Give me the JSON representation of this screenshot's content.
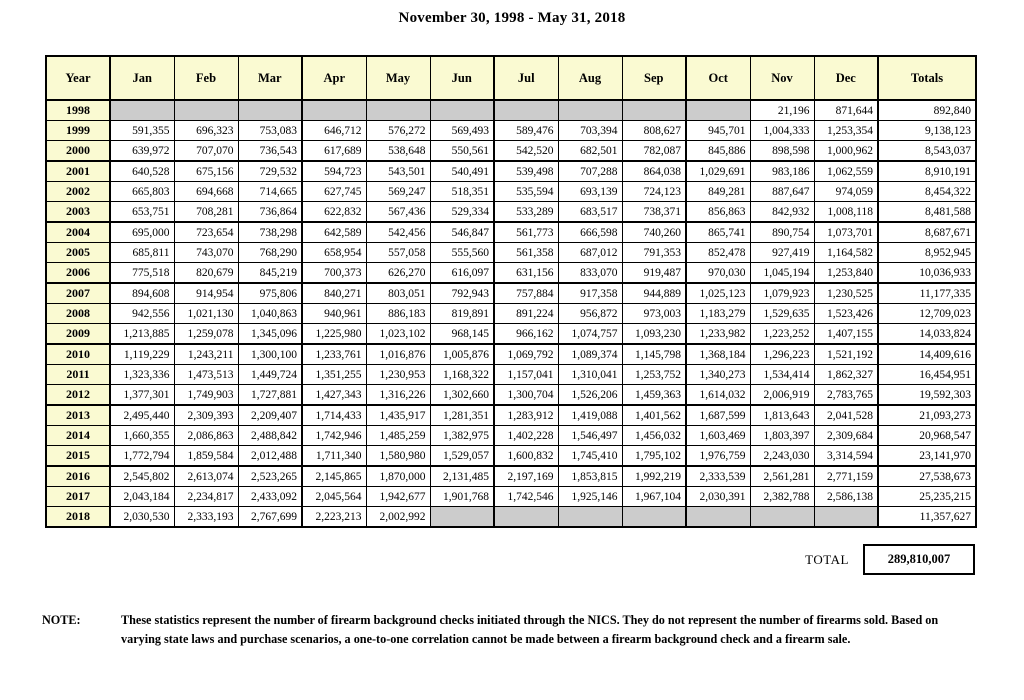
{
  "title": "November 30, 1998 - May 31, 2018",
  "colors": {
    "header_bg": "#fafad2",
    "empty_bg": "#cccccc",
    "border": "#000000"
  },
  "table": {
    "type": "table",
    "columns": [
      "Year",
      "Jan",
      "Feb",
      "Mar",
      "Apr",
      "May",
      "Jun",
      "Jul",
      "Aug",
      "Sep",
      "Oct",
      "Nov",
      "Dec",
      "Totals"
    ],
    "rows": [
      {
        "year": "1998",
        "months": [
          "",
          "",
          "",
          "",
          "",
          "",
          "",
          "",
          "",
          "",
          "21,196",
          "871,644"
        ],
        "total": "892,840"
      },
      {
        "year": "1999",
        "months": [
          "591,355",
          "696,323",
          "753,083",
          "646,712",
          "576,272",
          "569,493",
          "589,476",
          "703,394",
          "808,627",
          "945,701",
          "1,004,333",
          "1,253,354"
        ],
        "total": "9,138,123"
      },
      {
        "year": "2000",
        "months": [
          "639,972",
          "707,070",
          "736,543",
          "617,689",
          "538,648",
          "550,561",
          "542,520",
          "682,501",
          "782,087",
          "845,886",
          "898,598",
          "1,000,962"
        ],
        "total": "8,543,037"
      },
      {
        "year": "2001",
        "months": [
          "640,528",
          "675,156",
          "729,532",
          "594,723",
          "543,501",
          "540,491",
          "539,498",
          "707,288",
          "864,038",
          "1,029,691",
          "983,186",
          "1,062,559"
        ],
        "total": "8,910,191"
      },
      {
        "year": "2002",
        "months": [
          "665,803",
          "694,668",
          "714,665",
          "627,745",
          "569,247",
          "518,351",
          "535,594",
          "693,139",
          "724,123",
          "849,281",
          "887,647",
          "974,059"
        ],
        "total": "8,454,322"
      },
      {
        "year": "2003",
        "months": [
          "653,751",
          "708,281",
          "736,864",
          "622,832",
          "567,436",
          "529,334",
          "533,289",
          "683,517",
          "738,371",
          "856,863",
          "842,932",
          "1,008,118"
        ],
        "total": "8,481,588"
      },
      {
        "year": "2004",
        "months": [
          "695,000",
          "723,654",
          "738,298",
          "642,589",
          "542,456",
          "546,847",
          "561,773",
          "666,598",
          "740,260",
          "865,741",
          "890,754",
          "1,073,701"
        ],
        "total": "8,687,671"
      },
      {
        "year": "2005",
        "months": [
          "685,811",
          "743,070",
          "768,290",
          "658,954",
          "557,058",
          "555,560",
          "561,358",
          "687,012",
          "791,353",
          "852,478",
          "927,419",
          "1,164,582"
        ],
        "total": "8,952,945"
      },
      {
        "year": "2006",
        "months": [
          "775,518",
          "820,679",
          "845,219",
          "700,373",
          "626,270",
          "616,097",
          "631,156",
          "833,070",
          "919,487",
          "970,030",
          "1,045,194",
          "1,253,840"
        ],
        "total": "10,036,933"
      },
      {
        "year": "2007",
        "months": [
          "894,608",
          "914,954",
          "975,806",
          "840,271",
          "803,051",
          "792,943",
          "757,884",
          "917,358",
          "944,889",
          "1,025,123",
          "1,079,923",
          "1,230,525"
        ],
        "total": "11,177,335"
      },
      {
        "year": "2008",
        "months": [
          "942,556",
          "1,021,130",
          "1,040,863",
          "940,961",
          "886,183",
          "819,891",
          "891,224",
          "956,872",
          "973,003",
          "1,183,279",
          "1,529,635",
          "1,523,426"
        ],
        "total": "12,709,023"
      },
      {
        "year": "2009",
        "months": [
          "1,213,885",
          "1,259,078",
          "1,345,096",
          "1,225,980",
          "1,023,102",
          "968,145",
          "966,162",
          "1,074,757",
          "1,093,230",
          "1,233,982",
          "1,223,252",
          "1,407,155"
        ],
        "total": "14,033,824"
      },
      {
        "year": "2010",
        "months": [
          "1,119,229",
          "1,243,211",
          "1,300,100",
          "1,233,761",
          "1,016,876",
          "1,005,876",
          "1,069,792",
          "1,089,374",
          "1,145,798",
          "1,368,184",
          "1,296,223",
          "1,521,192"
        ],
        "total": "14,409,616"
      },
      {
        "year": "2011",
        "months": [
          "1,323,336",
          "1,473,513",
          "1,449,724",
          "1,351,255",
          "1,230,953",
          "1,168,322",
          "1,157,041",
          "1,310,041",
          "1,253,752",
          "1,340,273",
          "1,534,414",
          "1,862,327"
        ],
        "total": "16,454,951"
      },
      {
        "year": "2012",
        "months": [
          "1,377,301",
          "1,749,903",
          "1,727,881",
          "1,427,343",
          "1,316,226",
          "1,302,660",
          "1,300,704",
          "1,526,206",
          "1,459,363",
          "1,614,032",
          "2,006,919",
          "2,783,765"
        ],
        "total": "19,592,303"
      },
      {
        "year": "2013",
        "months": [
          "2,495,440",
          "2,309,393",
          "2,209,407",
          "1,714,433",
          "1,435,917",
          "1,281,351",
          "1,283,912",
          "1,419,088",
          "1,401,562",
          "1,687,599",
          "1,813,643",
          "2,041,528"
        ],
        "total": "21,093,273"
      },
      {
        "year": "2014",
        "months": [
          "1,660,355",
          "2,086,863",
          "2,488,842",
          "1,742,946",
          "1,485,259",
          "1,382,975",
          "1,402,228",
          "1,546,497",
          "1,456,032",
          "1,603,469",
          "1,803,397",
          "2,309,684"
        ],
        "total": "20,968,547"
      },
      {
        "year": "2015",
        "months": [
          "1,772,794",
          "1,859,584",
          "2,012,488",
          "1,711,340",
          "1,580,980",
          "1,529,057",
          "1,600,832",
          "1,745,410",
          "1,795,102",
          "1,976,759",
          "2,243,030",
          "3,314,594"
        ],
        "total": "23,141,970"
      },
      {
        "year": "2016",
        "months": [
          "2,545,802",
          "2,613,074",
          "2,523,265",
          "2,145,865",
          "1,870,000",
          "2,131,485",
          "2,197,169",
          "1,853,815",
          "1,992,219",
          "2,333,539",
          "2,561,281",
          "2,771,159"
        ],
        "total": "27,538,673"
      },
      {
        "year": "2017",
        "months": [
          "2,043,184",
          "2,234,817",
          "2,433,092",
          "2,045,564",
          "1,942,677",
          "1,901,768",
          "1,742,546",
          "1,925,146",
          "1,967,104",
          "2,030,391",
          "2,382,788",
          "2,586,138"
        ],
        "total": "25,235,215"
      },
      {
        "year": "2018",
        "months": [
          "2,030,530",
          "2,333,193",
          "2,767,699",
          "2,223,213",
          "2,002,992",
          "",
          "",
          "",
          "",
          "",
          "",
          ""
        ],
        "total": "11,357,627"
      }
    ]
  },
  "grand_total": {
    "label": "TOTAL",
    "value": "289,810,007"
  },
  "note": {
    "label": "NOTE:",
    "text": "These statistics represent the number of firearm background checks initiated through the NICS.  They do not represent the number of firearms sold.  Based on varying state laws and purchase scenarios, a one-to-one correlation cannot be made between a firearm background check and a firearm sale."
  }
}
